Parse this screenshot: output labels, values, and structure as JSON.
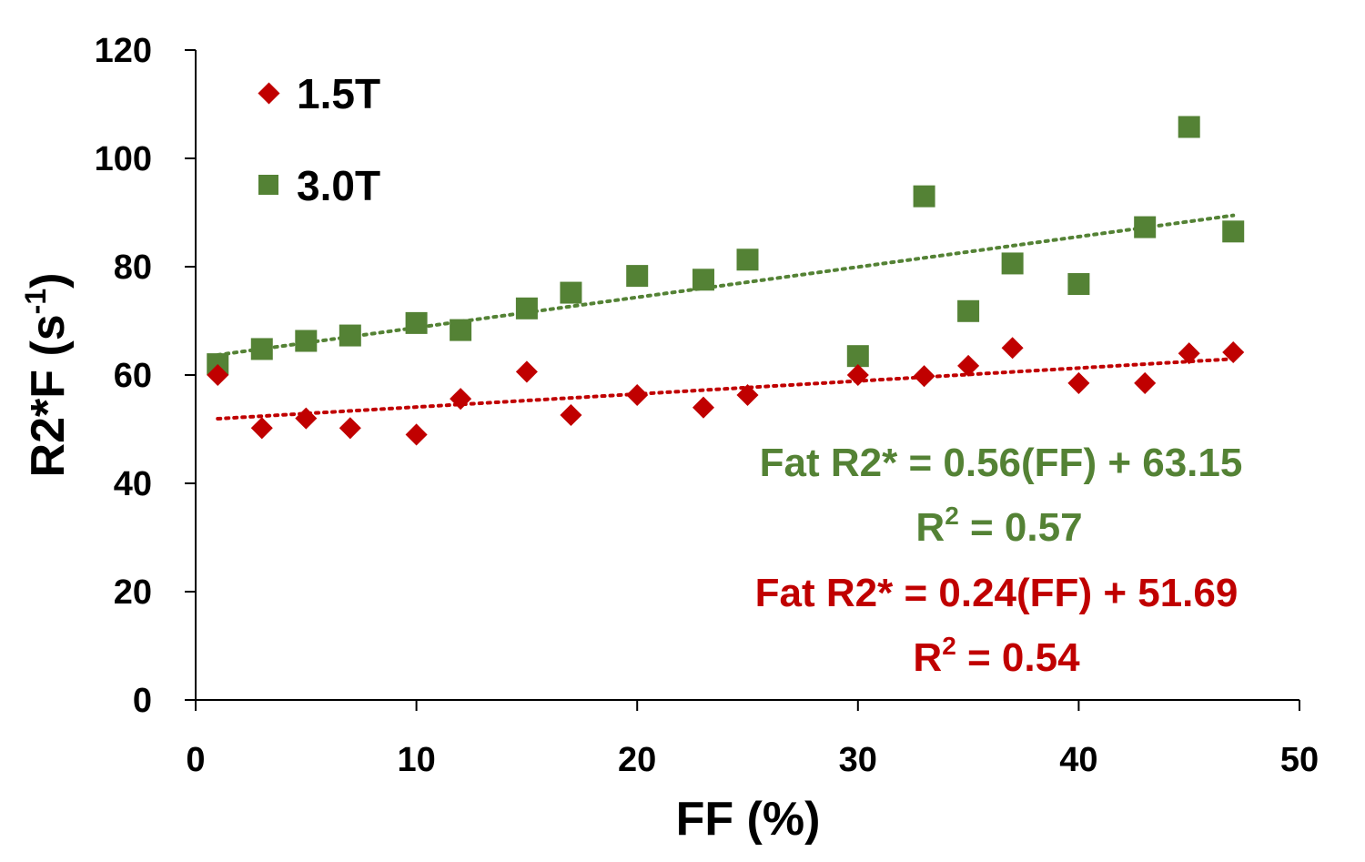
{
  "chart_data": {
    "type": "scatter",
    "title": "",
    "xlabel": "FF (%)",
    "ylabel_main": "R2*F (s",
    "ylabel_sup": "-1",
    "ylabel_close": ")",
    "xlim": [
      0,
      50
    ],
    "ylim": [
      0,
      120
    ],
    "xticks": [
      "0",
      "10",
      "20",
      "30",
      "40",
      "50"
    ],
    "yticks": [
      "0",
      "20",
      "40",
      "60",
      "80",
      "100",
      "120"
    ],
    "grid": false,
    "legend_position": "top-left",
    "series": [
      {
        "name": "1.5T",
        "marker": "diamond",
        "color": "#C00000",
        "x": [
          1,
          3,
          5,
          7,
          10,
          12,
          15,
          17,
          20,
          23,
          25,
          30,
          33,
          35,
          37,
          40,
          43,
          45,
          47
        ],
        "y": [
          60,
          50.2,
          52,
          50.2,
          49,
          55.6,
          60.6,
          52.6,
          56.3,
          54,
          56.3,
          60,
          59.8,
          61.7,
          65,
          58.5,
          58.5,
          64,
          64.2
        ],
        "trendline": {
          "slope": 0.24,
          "intercept": 51.69,
          "x_range": [
            1,
            47
          ]
        }
      },
      {
        "name": "3.0T",
        "marker": "square",
        "color": "#548235",
        "x": [
          1,
          3,
          5,
          7,
          10,
          12,
          15,
          17,
          20,
          23,
          25,
          30,
          33,
          35,
          37,
          40,
          43,
          45,
          47
        ],
        "y": [
          62,
          64.8,
          66.3,
          67.3,
          69.6,
          68.3,
          72.3,
          75.2,
          78.3,
          77.6,
          81.3,
          63.5,
          93,
          71.8,
          80.6,
          76.8,
          87.3,
          105.8,
          86.5
        ],
        "trendline": {
          "slope": 0.56,
          "intercept": 63.15,
          "x_range": [
            1,
            47
          ]
        }
      }
    ],
    "annotations": {
      "green_eq": "Fat R2* = 0.56(FF) + 63.15",
      "green_r2_base": "R",
      "green_r2_sup": "2",
      "green_r2_rest": " = 0.57",
      "red_eq": "Fat R2* = 0.24(FF) + 51.69",
      "red_r2_base": "R",
      "red_r2_sup": "2",
      "red_r2_rest": " = 0.54"
    }
  }
}
